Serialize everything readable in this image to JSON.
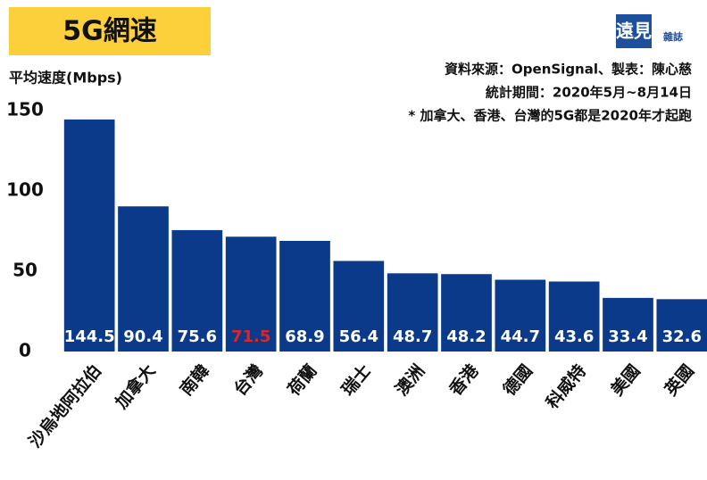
{
  "chart_data": {
    "type": "bar",
    "title": "5G網速",
    "y_label": "平均速度(Mbps)",
    "notes": [
      "資料來源：OpenSignal、製表：陳心慈",
      "統計期間：2020年5月~8月14日",
      "* 加拿大、香港、台灣的5G都是2020年才起跑"
    ],
    "logo": {
      "main": "遠見",
      "sub": "雜誌"
    },
    "categories": [
      "沙烏地阿拉伯",
      "加拿大",
      "南韓",
      "台灣",
      "荷蘭",
      "瑞士",
      "澳洲",
      "香港",
      "德國",
      "科威特",
      "美國",
      "英國"
    ],
    "values": [
      144.5,
      90.4,
      75.6,
      71.5,
      68.9,
      56.4,
      48.7,
      48.2,
      44.7,
      43.6,
      33.4,
      32.6
    ],
    "color": "#0c3a8a",
    "value_label_colors": [
      "#ffffff",
      "#ffffff",
      "#ffffff",
      "#e02424",
      "#ffffff",
      "#ffffff",
      "#ffffff",
      "#ffffff",
      "#ffffff",
      "#ffffff",
      "#ffffff",
      "#ffffff"
    ],
    "ylim": [
      0,
      150
    ],
    "yticks": [
      0,
      50,
      100,
      150
    ],
    "grid": false
  }
}
